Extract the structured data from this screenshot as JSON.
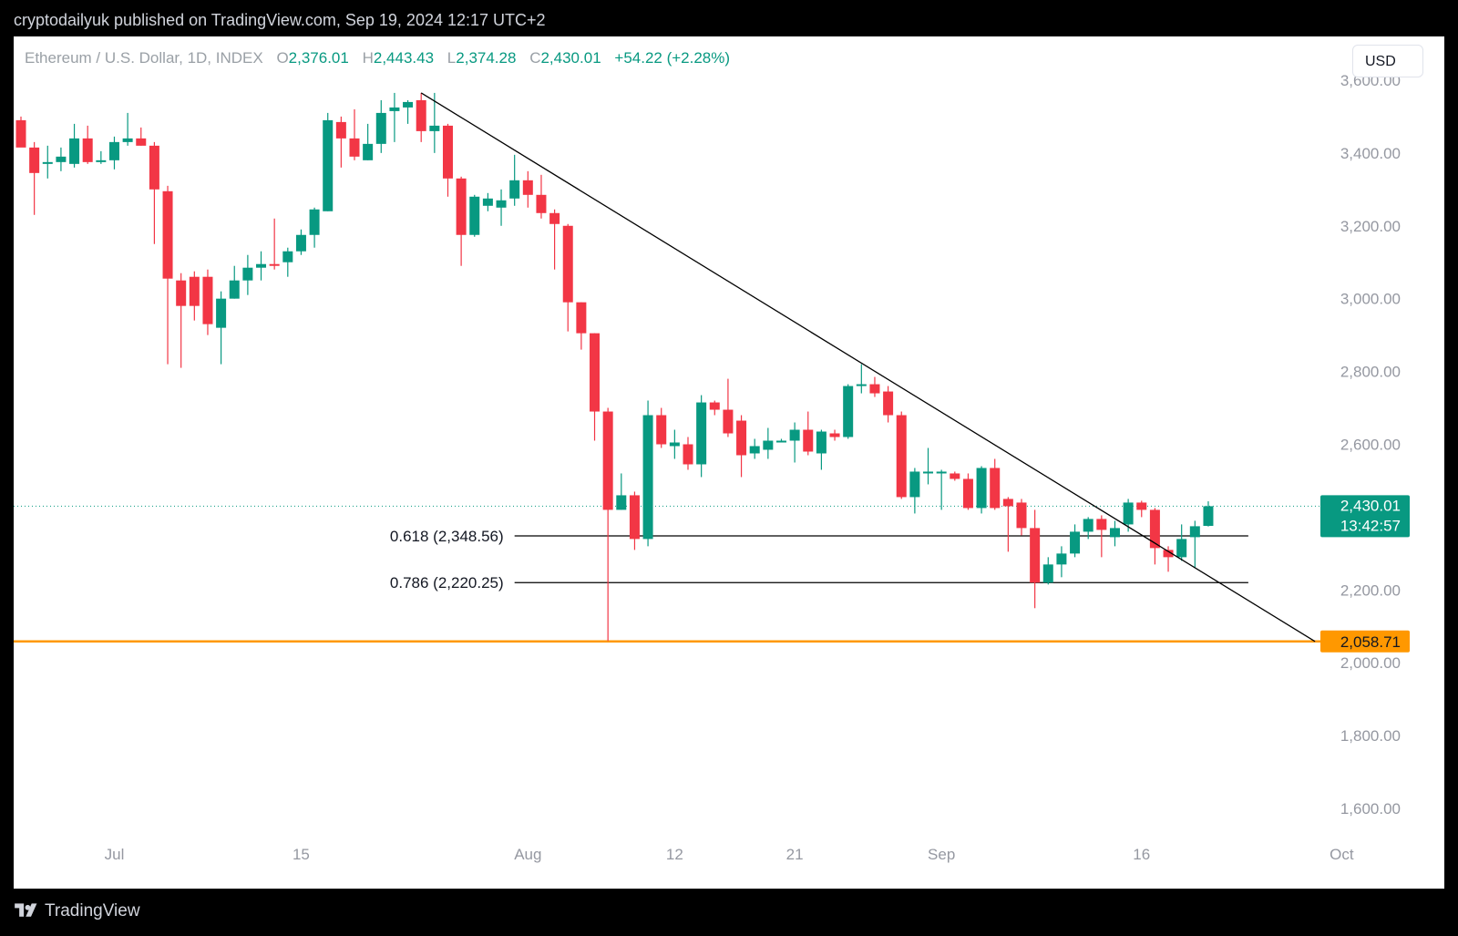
{
  "header": {
    "published": "cryptodailyuk published on TradingView.com, Sep 19, 2024 12:17 UTC+2"
  },
  "legend": {
    "symbol": "Ethereum / U.S. Dollar, 1D, INDEX",
    "open_label": "O",
    "open": "2,376.01",
    "high_label": "H",
    "high": "2,443.43",
    "low_label": "L",
    "low": "2,374.28",
    "close_label": "C",
    "close": "2,430.01",
    "change": "+54.22 (+2.28%)"
  },
  "currency_button": "USD",
  "price_tag": {
    "value": "2,430.01",
    "countdown": "13:42:57"
  },
  "support_tag": "2,058.71",
  "footer": {
    "logo_text": "TradingView"
  },
  "colors": {
    "up": "#089981",
    "down": "#f23645",
    "support": "#ff9800",
    "background": "#ffffff"
  },
  "chart_data": {
    "type": "candlestick",
    "y_axis": {
      "ticks": [
        1600,
        1800,
        2000,
        2200,
        2400,
        2600,
        2800,
        3000,
        3200,
        3400,
        3600
      ],
      "tick_labels": [
        "1,600.00",
        "1,800.00",
        "2,000.00",
        "2,200.00",
        "2,400.00",
        "2,600.00",
        "2,800.00",
        "3,000.00",
        "3,200.00",
        "3,400.00",
        "3,600.00"
      ],
      "range": [
        1480,
        3720
      ]
    },
    "x_axis": {
      "start_date": "2024-06-24",
      "end_date": "2024-10-01",
      "ticks": [
        {
          "date": "2024-07-01",
          "label": "Jul"
        },
        {
          "date": "2024-07-15",
          "label": "15"
        },
        {
          "date": "2024-08-01",
          "label": "Aug"
        },
        {
          "date": "2024-08-12",
          "label": "12"
        },
        {
          "date": "2024-08-21",
          "label": "21"
        },
        {
          "date": "2024-09-01",
          "label": "Sep"
        },
        {
          "date": "2024-09-16",
          "label": "16"
        },
        {
          "date": "2024-10-01",
          "label": "Oct"
        }
      ]
    },
    "candles": [
      {
        "date": "2024-06-24",
        "o": 3490,
        "h": 3500,
        "l": 3420,
        "c": 3415
      },
      {
        "date": "2024-06-25",
        "o": 3415,
        "h": 3430,
        "l": 3230,
        "c": 3345
      },
      {
        "date": "2024-06-26",
        "o": 3375,
        "h": 3420,
        "l": 3330,
        "c": 3375
      },
      {
        "date": "2024-06-27",
        "o": 3375,
        "h": 3415,
        "l": 3350,
        "c": 3390
      },
      {
        "date": "2024-06-28",
        "o": 3370,
        "h": 3480,
        "l": 3360,
        "c": 3440
      },
      {
        "date": "2024-06-29",
        "o": 3440,
        "h": 3475,
        "l": 3370,
        "c": 3375
      },
      {
        "date": "2024-06-30",
        "o": 3375,
        "h": 3405,
        "l": 3370,
        "c": 3380
      },
      {
        "date": "2024-07-01",
        "o": 3380,
        "h": 3445,
        "l": 3355,
        "c": 3430
      },
      {
        "date": "2024-07-02",
        "o": 3430,
        "h": 3510,
        "l": 3420,
        "c": 3440
      },
      {
        "date": "2024-07-03",
        "o": 3440,
        "h": 3470,
        "l": 3420,
        "c": 3420
      },
      {
        "date": "2024-07-04",
        "o": 3420,
        "h": 3430,
        "l": 3150,
        "c": 3300
      },
      {
        "date": "2024-07-05",
        "o": 3295,
        "h": 3310,
        "l": 2820,
        "c": 3055
      },
      {
        "date": "2024-07-06",
        "o": 3050,
        "h": 3070,
        "l": 2810,
        "c": 2980
      },
      {
        "date": "2024-07-07",
        "o": 3060,
        "h": 3075,
        "l": 2940,
        "c": 2980
      },
      {
        "date": "2024-07-08",
        "o": 3060,
        "h": 3080,
        "l": 2900,
        "c": 2930
      },
      {
        "date": "2024-07-09",
        "o": 2920,
        "h": 3020,
        "l": 2820,
        "c": 3000
      },
      {
        "date": "2024-07-10",
        "o": 3000,
        "h": 3090,
        "l": 3000,
        "c": 3050
      },
      {
        "date": "2024-07-11",
        "o": 3050,
        "h": 3120,
        "l": 3010,
        "c": 3085
      },
      {
        "date": "2024-07-12",
        "o": 3085,
        "h": 3130,
        "l": 3050,
        "c": 3095
      },
      {
        "date": "2024-07-13",
        "o": 3095,
        "h": 3220,
        "l": 3080,
        "c": 3090
      },
      {
        "date": "2024-07-14",
        "o": 3100,
        "h": 3140,
        "l": 3060,
        "c": 3130
      },
      {
        "date": "2024-07-15",
        "o": 3130,
        "h": 3190,
        "l": 3120,
        "c": 3175
      },
      {
        "date": "2024-07-16",
        "o": 3175,
        "h": 3250,
        "l": 3140,
        "c": 3245
      },
      {
        "date": "2024-07-17",
        "o": 3240,
        "h": 3510,
        "l": 3240,
        "c": 3490
      },
      {
        "date": "2024-07-18",
        "o": 3485,
        "h": 3500,
        "l": 3360,
        "c": 3440
      },
      {
        "date": "2024-07-19",
        "o": 3440,
        "h": 3520,
        "l": 3380,
        "c": 3390
      },
      {
        "date": "2024-07-20",
        "o": 3380,
        "h": 3480,
        "l": 3380,
        "c": 3425
      },
      {
        "date": "2024-07-21",
        "o": 3425,
        "h": 3545,
        "l": 3400,
        "c": 3510
      },
      {
        "date": "2024-07-22",
        "o": 3515,
        "h": 3565,
        "l": 3430,
        "c": 3525
      },
      {
        "date": "2024-07-23",
        "o": 3525,
        "h": 3545,
        "l": 3480,
        "c": 3540
      },
      {
        "date": "2024-07-24",
        "o": 3545,
        "h": 3565,
        "l": 3430,
        "c": 3460
      },
      {
        "date": "2024-07-25",
        "o": 3460,
        "h": 3565,
        "l": 3400,
        "c": 3475
      },
      {
        "date": "2024-07-26",
        "o": 3475,
        "h": 3480,
        "l": 3280,
        "c": 3330
      },
      {
        "date": "2024-07-27",
        "o": 3330,
        "h": 3335,
        "l": 3090,
        "c": 3175
      },
      {
        "date": "2024-07-28",
        "o": 3175,
        "h": 3285,
        "l": 3170,
        "c": 3280
      },
      {
        "date": "2024-07-29",
        "o": 3255,
        "h": 3290,
        "l": 3240,
        "c": 3275
      },
      {
        "date": "2024-07-30",
        "o": 3250,
        "h": 3300,
        "l": 3200,
        "c": 3270
      },
      {
        "date": "2024-07-31",
        "o": 3275,
        "h": 3395,
        "l": 3255,
        "c": 3325
      },
      {
        "date": "2024-08-01",
        "o": 3325,
        "h": 3350,
        "l": 3250,
        "c": 3285
      },
      {
        "date": "2024-08-02",
        "o": 3285,
        "h": 3340,
        "l": 3220,
        "c": 3235
      },
      {
        "date": "2024-08-03",
        "o": 3235,
        "h": 3245,
        "l": 3080,
        "c": 3205
      },
      {
        "date": "2024-08-04",
        "o": 3200,
        "h": 3205,
        "l": 2910,
        "c": 2990
      },
      {
        "date": "2024-08-05",
        "o": 2990,
        "h": 2990,
        "l": 2860,
        "c": 2905
      },
      {
        "date": "2024-08-06",
        "o": 2905,
        "h": 2905,
        "l": 2610,
        "c": 2690
      },
      {
        "date": "2024-08-07",
        "o": 2690,
        "h": 2700,
        "l": 2060,
        "c": 2420
      },
      {
        "date": "2024-08-08",
        "o": 2420,
        "h": 2520,
        "l": 2420,
        "c": 2460
      },
      {
        "date": "2024-08-09",
        "o": 2460,
        "h": 2470,
        "l": 2310,
        "c": 2340
      },
      {
        "date": "2024-08-10",
        "o": 2340,
        "h": 2720,
        "l": 2320,
        "c": 2680
      },
      {
        "date": "2024-08-11",
        "o": 2680,
        "h": 2700,
        "l": 2590,
        "c": 2600
      },
      {
        "date": "2024-08-12",
        "o": 2595,
        "h": 2640,
        "l": 2560,
        "c": 2605
      },
      {
        "date": "2024-08-13",
        "o": 2600,
        "h": 2620,
        "l": 2530,
        "c": 2545
      },
      {
        "date": "2024-08-14",
        "o": 2545,
        "h": 2735,
        "l": 2510,
        "c": 2715
      },
      {
        "date": "2024-08-15",
        "o": 2715,
        "h": 2720,
        "l": 2680,
        "c": 2695
      },
      {
        "date": "2024-08-16",
        "o": 2695,
        "h": 2780,
        "l": 2620,
        "c": 2630
      },
      {
        "date": "2024-08-17",
        "o": 2665,
        "h": 2680,
        "l": 2510,
        "c": 2570
      },
      {
        "date": "2024-08-18",
        "o": 2575,
        "h": 2615,
        "l": 2560,
        "c": 2595
      },
      {
        "date": "2024-08-19",
        "o": 2585,
        "h": 2645,
        "l": 2560,
        "c": 2610
      },
      {
        "date": "2024-08-20",
        "o": 2610,
        "h": 2615,
        "l": 2605,
        "c": 2610
      },
      {
        "date": "2024-08-21",
        "o": 2610,
        "h": 2660,
        "l": 2550,
        "c": 2640
      },
      {
        "date": "2024-08-22",
        "o": 2640,
        "h": 2690,
        "l": 2570,
        "c": 2580
      },
      {
        "date": "2024-08-23",
        "o": 2575,
        "h": 2640,
        "l": 2530,
        "c": 2635
      },
      {
        "date": "2024-08-24",
        "o": 2630,
        "h": 2640,
        "l": 2610,
        "c": 2620
      },
      {
        "date": "2024-08-25",
        "o": 2620,
        "h": 2765,
        "l": 2615,
        "c": 2760
      },
      {
        "date": "2024-08-26",
        "o": 2760,
        "h": 2820,
        "l": 2740,
        "c": 2765
      },
      {
        "date": "2024-08-27",
        "o": 2765,
        "h": 2785,
        "l": 2730,
        "c": 2740
      },
      {
        "date": "2024-08-28",
        "o": 2745,
        "h": 2760,
        "l": 2660,
        "c": 2680
      },
      {
        "date": "2024-08-29",
        "o": 2680,
        "h": 2690,
        "l": 2450,
        "c": 2455
      },
      {
        "date": "2024-08-30",
        "o": 2455,
        "h": 2535,
        "l": 2410,
        "c": 2525
      },
      {
        "date": "2024-08-31",
        "o": 2525,
        "h": 2590,
        "l": 2490,
        "c": 2525
      },
      {
        "date": "2024-09-01",
        "o": 2525,
        "h": 2530,
        "l": 2420,
        "c": 2525
      },
      {
        "date": "2024-09-02",
        "o": 2520,
        "h": 2525,
        "l": 2500,
        "c": 2505
      },
      {
        "date": "2024-09-03",
        "o": 2505,
        "h": 2520,
        "l": 2420,
        "c": 2425
      },
      {
        "date": "2024-09-04",
        "o": 2425,
        "h": 2540,
        "l": 2410,
        "c": 2535
      },
      {
        "date": "2024-09-05",
        "o": 2535,
        "h": 2560,
        "l": 2420,
        "c": 2425
      },
      {
        "date": "2024-09-06",
        "o": 2450,
        "h": 2455,
        "l": 2305,
        "c": 2430
      },
      {
        "date": "2024-09-07",
        "o": 2440,
        "h": 2450,
        "l": 2350,
        "c": 2370
      },
      {
        "date": "2024-09-08",
        "o": 2370,
        "h": 2420,
        "l": 2150,
        "c": 2220
      },
      {
        "date": "2024-09-09",
        "o": 2220,
        "h": 2290,
        "l": 2215,
        "c": 2270
      },
      {
        "date": "2024-09-10",
        "o": 2270,
        "h": 2320,
        "l": 2235,
        "c": 2300
      },
      {
        "date": "2024-09-11",
        "o": 2300,
        "h": 2380,
        "l": 2290,
        "c": 2360
      },
      {
        "date": "2024-09-12",
        "o": 2360,
        "h": 2400,
        "l": 2340,
        "c": 2395
      },
      {
        "date": "2024-09-13",
        "o": 2395,
        "h": 2405,
        "l": 2290,
        "c": 2365
      },
      {
        "date": "2024-09-14",
        "o": 2345,
        "h": 2390,
        "l": 2320,
        "c": 2370
      },
      {
        "date": "2024-09-15",
        "o": 2380,
        "h": 2450,
        "l": 2360,
        "c": 2440
      },
      {
        "date": "2024-09-16",
        "o": 2440,
        "h": 2445,
        "l": 2400,
        "c": 2420
      },
      {
        "date": "2024-09-17",
        "o": 2420,
        "h": 2425,
        "l": 2270,
        "c": 2315
      },
      {
        "date": "2024-09-18",
        "o": 2310,
        "h": 2320,
        "l": 2250,
        "c": 2290
      },
      {
        "date": "2024-09-19",
        "o": 2290,
        "h": 2380,
        "l": 2280,
        "c": 2340
      },
      {
        "date": "2024-09-20",
        "o": 2345,
        "h": 2390,
        "l": 2260,
        "c": 2375
      },
      {
        "date": "2024-09-21",
        "o": 2376.01,
        "h": 2443.43,
        "l": 2374.28,
        "c": 2430.01
      }
    ],
    "trendline": {
      "from": {
        "date": "2024-07-24",
        "price": 3565
      },
      "to": {
        "date": "2024-09-29",
        "price": 2058.71
      }
    },
    "levels": [
      {
        "label": "0.618 (2,348.56)",
        "price": 2348.56,
        "from_date": "2024-07-31",
        "to_date": "2024-09-24",
        "color": "#000000"
      },
      {
        "label": "0.786 (2,220.25)",
        "price": 2220.25,
        "from_date": "2024-07-31",
        "to_date": "2024-09-24",
        "color": "#000000"
      }
    ],
    "support_line": {
      "price": 2058.71,
      "color": "#ff9800"
    },
    "last_price": 2430.01
  }
}
